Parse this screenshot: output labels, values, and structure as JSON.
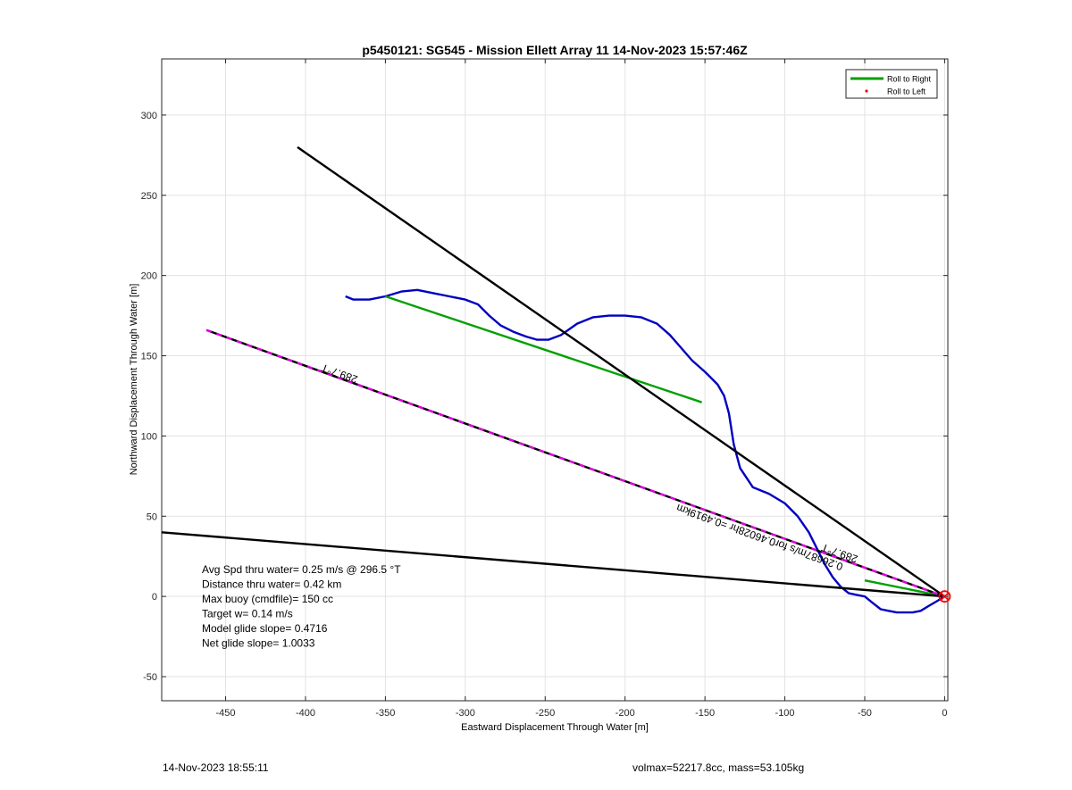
{
  "chart_data": {
    "type": "line",
    "title": "p5450121: SG545 - Mission Ellett Array 11 14-Nov-2023 15:57:46Z",
    "xlabel": "Eastward Displacement Through Water [m]",
    "ylabel": "Northward Displacement Through Water [m]",
    "xlim": [
      -490,
      2
    ],
    "ylim": [
      -65,
      335
    ],
    "xticks": [
      -450,
      -400,
      -350,
      -300,
      -250,
      -200,
      -150,
      -100,
      -50,
      0
    ],
    "yticks": [
      -50,
      0,
      50,
      100,
      150,
      200,
      250,
      300
    ],
    "xtick_labels": [
      "-450",
      "-400",
      "-350",
      "-300",
      "-250",
      "-200",
      "-150",
      "-100",
      "-50",
      "0"
    ],
    "ytick_labels": [
      "-50",
      "0",
      "50",
      "100",
      "150",
      "200",
      "250",
      "300"
    ],
    "grid": true,
    "legend": {
      "placement": "top-right",
      "entries": [
        {
          "label": "Roll to Right",
          "color": "#00a000",
          "style": "line"
        },
        {
          "label": "Roll to Left",
          "color": "#ff0000",
          "style": "dot"
        }
      ]
    },
    "series": [
      {
        "color": "#0000c0",
        "x": [
          -375,
          -370,
          -360,
          -350,
          -340,
          -330,
          -320,
          -310,
          -300,
          -292,
          -285,
          -278,
          -270,
          -262,
          -255,
          -248,
          -240,
          -230,
          -220,
          -210,
          -200,
          -190,
          -180,
          -172,
          -165,
          -158,
          -150,
          -145,
          -142,
          -138,
          -135,
          -132,
          -128,
          -120,
          -110,
          -100,
          -92,
          -85,
          -80,
          -75,
          -70,
          -65,
          -60,
          -55,
          -50,
          -45,
          -40,
          -35,
          -30,
          -25,
          -20,
          -15,
          -10,
          -5,
          0
        ],
        "y": [
          187,
          185,
          185,
          187,
          190,
          191,
          189,
          187,
          185,
          182,
          175,
          169,
          165,
          162,
          160,
          160,
          163,
          170,
          174,
          175,
          175,
          174,
          170,
          163,
          155,
          147,
          140,
          135,
          132,
          125,
          114,
          95,
          80,
          68,
          64,
          58,
          50,
          40,
          30,
          20,
          12,
          6,
          2,
          1,
          0,
          -4,
          -8,
          -9,
          -10,
          -10,
          -10,
          -9,
          -6,
          -3,
          0
        ]
      },
      {
        "color": "#00a000",
        "x": [
          -350,
          -152
        ],
        "y": [
          187,
          121
        ]
      },
      {
        "color": "#00a000",
        "x": [
          -50,
          0
        ],
        "y": [
          10,
          0
        ]
      },
      {
        "color": "#000000",
        "x": [
          -405,
          0
        ],
        "y": [
          280,
          0
        ]
      },
      {
        "color": "#000000",
        "x": [
          -490,
          0
        ],
        "y": [
          40,
          0
        ]
      },
      {
        "color": "#000000",
        "dash_color": "#e000e0",
        "x": [
          -462,
          0
        ],
        "y": [
          166,
          0
        ]
      }
    ],
    "annotations": [
      {
        "text": "289.7°T",
        "x": -378,
        "y": 141,
        "upside_down": true
      },
      {
        "text": "289.7°T",
        "x": -65,
        "y": 29,
        "upside_down": true
      },
      {
        "text": "0.26687m/s for0.46028hr =0.4919km",
        "x": -115,
        "y": 39,
        "upside_down": true
      }
    ],
    "stats": [
      "Avg Spd thru water=  0.25 m/s @ 296.5 °T",
      "Distance thru water=  0.42 km",
      "Max buoy (cmdfile)= 150 cc",
      "Target w= 0.14 m/s",
      "Model glide slope= 0.4716",
      "Net glide slope= 1.0033"
    ],
    "origin_marker": {
      "x": 0,
      "y": 0,
      "color": "#ff0000"
    }
  },
  "footer": {
    "left": "14-Nov-2023 18:55:11",
    "right": "volmax=52217.8cc, mass=53.105kg"
  }
}
